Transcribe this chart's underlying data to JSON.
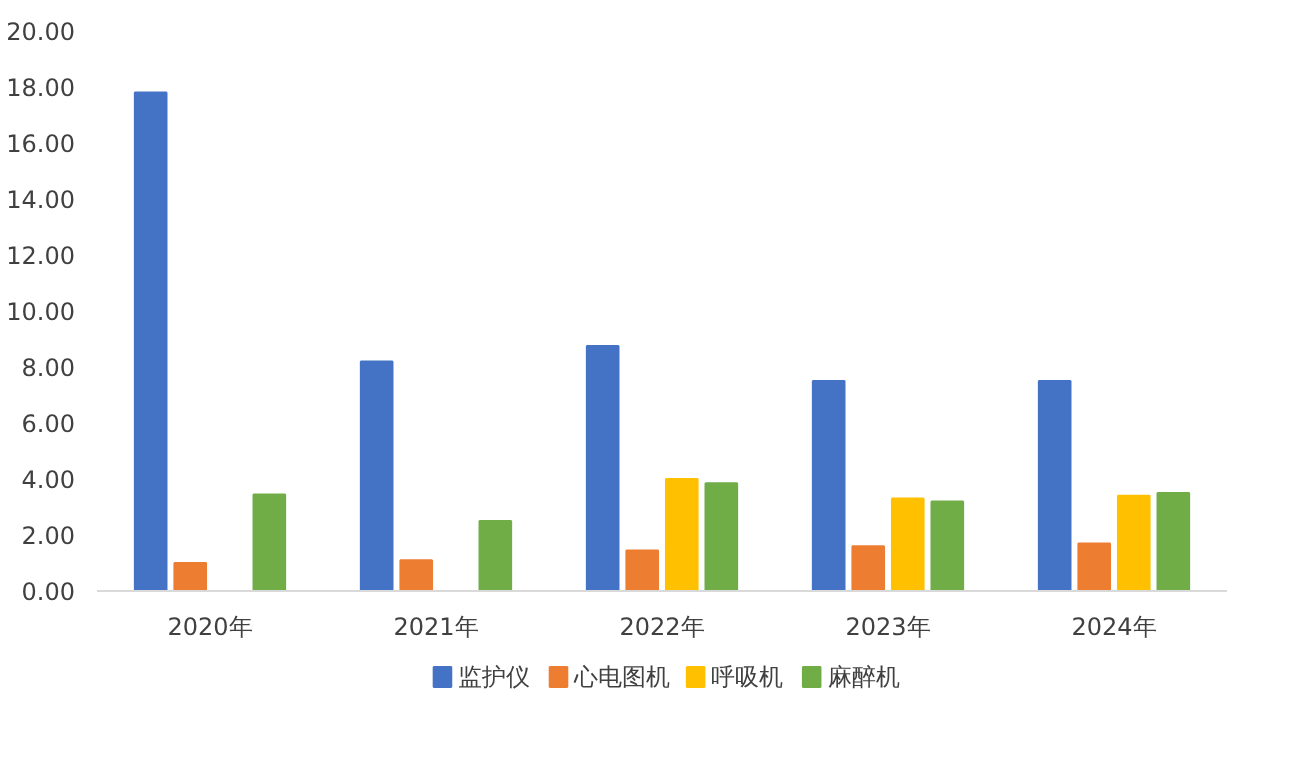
{
  "chart_data": {
    "type": "bar",
    "categories": [
      "2020年",
      "2021年",
      "2022年",
      "2023年",
      "2024年"
    ],
    "series": [
      {
        "name": "监护仪",
        "color": "#4472c4",
        "values": [
          17.8,
          8.2,
          8.75,
          7.5,
          7.5
        ]
      },
      {
        "name": "心电图机",
        "color": "#ed7d31",
        "values": [
          1.0,
          1.1,
          1.45,
          1.6,
          1.7
        ]
      },
      {
        "name": "呼吸机",
        "color": "#ffc000",
        "values": [
          null,
          null,
          4.0,
          3.3,
          3.4
        ]
      },
      {
        "name": "麻醉机",
        "color": "#70ad47",
        "values": [
          3.45,
          2.5,
          3.85,
          3.2,
          3.5
        ]
      }
    ],
    "ylim": [
      0,
      20
    ],
    "yticks": [
      {
        "value": 0,
        "label": "0.00"
      },
      {
        "value": 2,
        "label": "2.00"
      },
      {
        "value": 4,
        "label": "4.00"
      },
      {
        "value": 6,
        "label": "6.00"
      },
      {
        "value": 8,
        "label": "8.00"
      },
      {
        "value": 10,
        "label": "10.00"
      },
      {
        "value": 12,
        "label": "12.00"
      },
      {
        "value": 14,
        "label": "14.00"
      },
      {
        "value": 16,
        "label": "16.00"
      },
      {
        "value": 18,
        "label": "18.00"
      },
      {
        "value": 20,
        "label": "20.00"
      }
    ],
    "grid": false,
    "legend": "bottom"
  }
}
